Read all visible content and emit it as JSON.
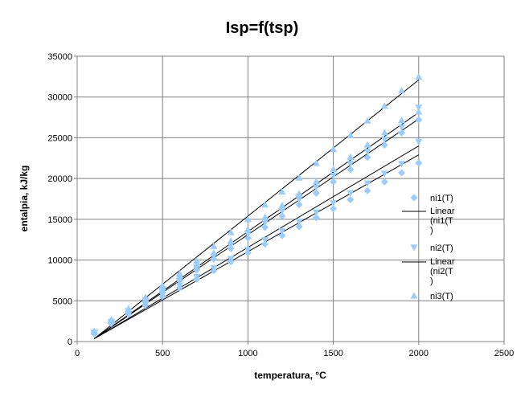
{
  "chart_data": {
    "type": "scatter",
    "title": "Isp=f(tsp)",
    "xlabel": "temperatura, °C",
    "ylabel": "entalpia, kJ/kg",
    "xlim": [
      0,
      2500
    ],
    "ylim": [
      0,
      35000
    ],
    "xticks": [
      "0",
      "500",
      "1000",
      "1500",
      "2000",
      "2500"
    ],
    "yticks": [
      "0",
      "5000",
      "10000",
      "15000",
      "20000",
      "25000",
      "30000",
      "35000"
    ],
    "grid": true,
    "legend_position": "right",
    "marker_color": "#99ccff",
    "line_color": "#000000",
    "legend": [
      {
        "label": "ni1(T)",
        "kind": "diamond"
      },
      {
        "label": "Linear (ni1(T))",
        "kind": "line",
        "lines": [
          "Linear",
          "(ni1(T",
          ")"
        ]
      },
      {
        "label": "ni2(T)",
        "kind": "triangle-down"
      },
      {
        "label": "Linear (ni2(T))",
        "kind": "line",
        "lines": [
          "Linear",
          "(ni2(T",
          ")"
        ]
      },
      {
        "label": "ni3(T)",
        "kind": "triangle-up"
      }
    ],
    "series": [
      {
        "name": "ni1(T)",
        "marker": "diamond",
        "x": [
          100,
          200,
          300,
          400,
          500,
          600,
          700,
          800,
          900,
          1000,
          1100,
          1200,
          1300,
          1400,
          1500,
          1600,
          1700,
          1800,
          1900,
          2000
        ],
        "y": [
          950,
          2200,
          3350,
          4450,
          5550,
          6600,
          7650,
          8700,
          9800,
          10900,
          11950,
          13000,
          14100,
          15200,
          16300,
          17400,
          18500,
          19600,
          20700,
          21900
        ]
      },
      {
        "name": "ni2(T)",
        "marker": "triangle-down",
        "x": [
          100,
          200,
          300,
          400,
          500,
          600,
          700,
          800,
          900,
          1000,
          1100,
          1200,
          1300,
          1400,
          1500,
          1600,
          1700,
          1800,
          1900,
          2000
        ],
        "y": [
          1000,
          2300,
          3450,
          4600,
          5750,
          6850,
          7950,
          9050,
          10150,
          11300,
          12450,
          13550,
          14700,
          15850,
          17000,
          18200,
          19400,
          20600,
          21800,
          24500
        ]
      },
      {
        "name": "ni3(T)",
        "marker": "triangle-up",
        "x": [
          100,
          200,
          300,
          400,
          500,
          600,
          700,
          800,
          900,
          1000,
          1100,
          1200,
          1300,
          1400,
          1500,
          1600,
          1700,
          1800,
          1900,
          2000
        ],
        "y": [
          1300,
          2700,
          4050,
          5450,
          6900,
          8350,
          9900,
          11700,
          13400,
          15000,
          16800,
          18400,
          20100,
          21900,
          23600,
          25300,
          27100,
          28900,
          30800,
          32500
        ]
      },
      {
        "name": "",
        "marker": "diamond",
        "x": [
          100,
          200,
          300,
          400,
          500,
          600,
          700,
          800,
          900,
          1000,
          1100,
          1200,
          1300,
          1400,
          1500,
          1600,
          1700,
          1800,
          1900,
          2000
        ],
        "y": [
          1050,
          2350,
          3600,
          4900,
          6200,
          7500,
          8800,
          10100,
          11400,
          12700,
          14000,
          15400,
          16800,
          18200,
          19600,
          21100,
          22600,
          24100,
          25600,
          27200
        ]
      },
      {
        "name": "",
        "marker": "triangle-down",
        "x": [
          100,
          200,
          300,
          400,
          500,
          600,
          700,
          800,
          900,
          1000,
          1100,
          1200,
          1300,
          1400,
          1500,
          1600,
          1700,
          1800,
          1900,
          2000
        ],
        "y": [
          1100,
          2450,
          3750,
          5050,
          6400,
          7750,
          9100,
          10450,
          11800,
          13200,
          14600,
          16000,
          17450,
          18900,
          20350,
          21800,
          23300,
          24800,
          26300,
          28700
        ]
      },
      {
        "name": "",
        "marker": "triangle-up",
        "x": [
          100,
          200,
          300,
          400,
          500,
          600,
          700,
          800,
          900,
          1000,
          1100,
          1200,
          1300,
          1400,
          1500,
          1600,
          1700,
          1800,
          1900,
          2000
        ],
        "y": [
          1150,
          2550,
          3900,
          5250,
          6650,
          8050,
          9450,
          10900,
          12350,
          13800,
          15250,
          16700,
          18150,
          19650,
          21150,
          22650,
          24150,
          25650,
          27150,
          28200
        ]
      }
    ],
    "trendlines": [
      {
        "x": [
          100,
          2000
        ],
        "y": [
          350,
          22900
        ]
      },
      {
        "x": [
          100,
          2000
        ],
        "y": [
          350,
          24000
        ]
      },
      {
        "x": [
          100,
          2000
        ],
        "y": [
          350,
          27300
        ]
      },
      {
        "x": [
          100,
          2000
        ],
        "y": [
          350,
          28100
        ]
      },
      {
        "x": [
          100,
          2000
        ],
        "y": [
          350,
          32100
        ]
      }
    ]
  }
}
